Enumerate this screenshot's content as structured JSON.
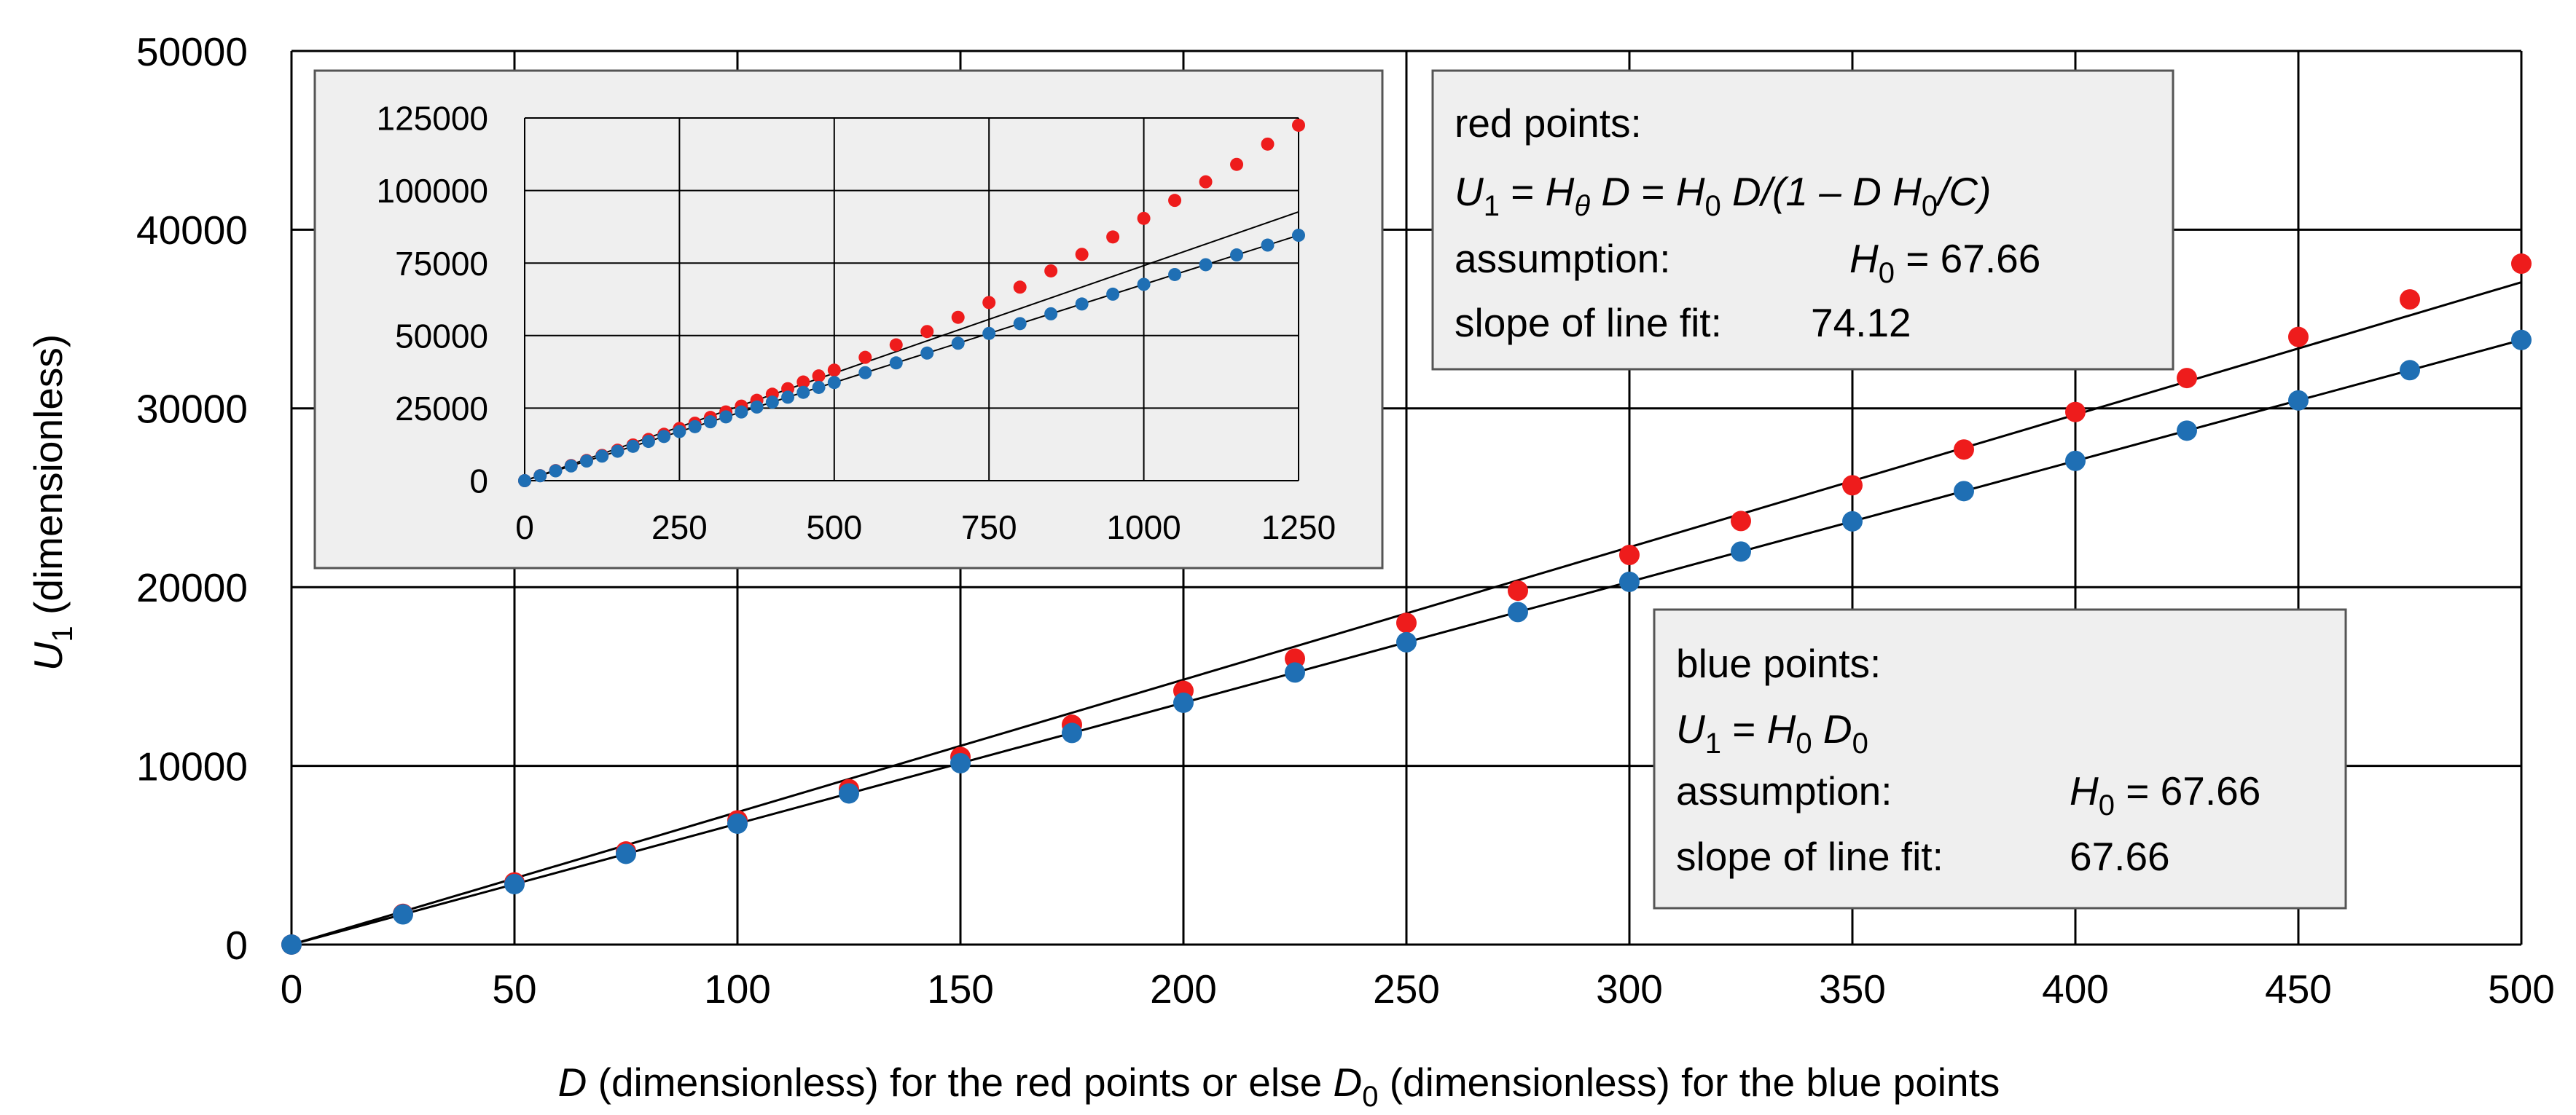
{
  "chart_data": [
    {
      "type": "scatter",
      "xlabel": {
        "var": "D",
        "text1": " (dimensionless) for the red points or else ",
        "var2": "D",
        "sub2": "0",
        "text2": " (dimensionless) for the blue points"
      },
      "ylabel": {
        "var": "U",
        "sub": "1",
        "text": " (dimensionless)"
      },
      "xlim": [
        0,
        500
      ],
      "ylim": [
        0,
        50000
      ],
      "xticks": [
        0,
        50,
        100,
        150,
        200,
        250,
        300,
        350,
        400,
        450,
        500
      ],
      "yticks": [
        0,
        10000,
        20000,
        30000,
        40000,
        50000
      ],
      "grid": true,
      "series": [
        {
          "color": "#ee1c1c",
          "x": [
            0,
            25,
            50,
            75,
            100,
            125,
            150,
            175,
            200,
            225,
            250,
            275,
            300,
            325,
            350,
            375,
            400,
            425,
            450,
            475,
            500
          ],
          "y": [
            0,
            1720,
            3480,
            5210,
            6950,
            8700,
            10500,
            12300,
            14200,
            16000,
            18000,
            19800,
            21800,
            23700,
            25700,
            27700,
            29800,
            31700,
            34000,
            36100,
            38100
          ]
        },
        {
          "color": "#1f6fb4",
          "x": [
            0,
            25,
            50,
            75,
            100,
            125,
            150,
            175,
            200,
            225,
            250,
            275,
            300,
            325,
            350,
            375,
            400,
            425,
            450,
            475,
            500
          ],
          "y": [
            0,
            1690,
            3383,
            5075,
            6766,
            8458,
            10149,
            11841,
            13532,
            15224,
            16915,
            18607,
            20298,
            21990,
            23681,
            25373,
            27064,
            28756,
            30447,
            32139,
            33830
          ]
        }
      ],
      "fit_lines": [
        {
          "slope": 74.12,
          "color": "#000000"
        },
        {
          "slope": 67.66,
          "color": "#000000"
        }
      ],
      "annotations": {
        "red_box": {
          "title": "red points:",
          "eq": {
            "U": "U",
            "U_sub": "1",
            "eq1": " = ",
            "H": "H",
            "H_sub": "θ",
            "D": " D",
            "eq2": " = ",
            "H2": "H",
            "H2_sub": "0",
            "rest": " D/(1 – D H",
            "rest_sub": "0",
            "rest_end": "/C)"
          },
          "assumption_label": "assumption:",
          "assumption_var": "H",
          "assumption_sub": "0",
          "assumption_value": " = 67.66",
          "slope_label": "slope of line fit:",
          "slope_value": "74.12",
          "title_color": "#ee1c1c"
        },
        "blue_box": {
          "title": "blue points:",
          "eq": {
            "U": "U",
            "U_sub": "1",
            "eq1": " = ",
            "H": "H",
            "H_sub": "0",
            "D": " D",
            "D_sub": "0"
          },
          "assumption_label": "assumption:",
          "assumption_var": "H",
          "assumption_sub": "0",
          "assumption_value": " = 67.66",
          "slope_label": "slope of line fit:",
          "slope_value": "67.66",
          "title_color": "#1f6fb4"
        }
      }
    },
    {
      "type": "scatter",
      "inset": true,
      "xlim": [
        0,
        1250
      ],
      "ylim": [
        0,
        125000
      ],
      "xticks": [
        0,
        250,
        500,
        750,
        1000,
        1250
      ],
      "yticks": [
        0,
        25000,
        50000,
        75000,
        100000,
        125000
      ],
      "grid": true,
      "series": [
        {
          "color": "#ee1c1c",
          "x": [
            0,
            25,
            50,
            75,
            100,
            125,
            150,
            175,
            200,
            225,
            250,
            275,
            300,
            325,
            350,
            375,
            400,
            425,
            450,
            475,
            500,
            550,
            600,
            650,
            700,
            750,
            800,
            850,
            900,
            950,
            1000,
            1050,
            1100,
            1150,
            1200,
            1250
          ],
          "y": [
            0,
            1720,
            3480,
            5210,
            6950,
            8700,
            10500,
            12300,
            14200,
            16000,
            18000,
            19800,
            21800,
            23700,
            25700,
            27700,
            29800,
            31700,
            34000,
            36100,
            38100,
            42500,
            46800,
            51400,
            56300,
            61400,
            66700,
            72300,
            78000,
            84000,
            90400,
            96600,
            103000,
            109000,
            116000,
            122500
          ]
        },
        {
          "color": "#1f6fb4",
          "x": [
            0,
            25,
            50,
            75,
            100,
            125,
            150,
            175,
            200,
            225,
            250,
            275,
            300,
            325,
            350,
            375,
            400,
            425,
            450,
            475,
            500,
            550,
            600,
            650,
            700,
            750,
            800,
            850,
            900,
            950,
            1000,
            1050,
            1100,
            1150,
            1200,
            1250
          ],
          "y": [
            0,
            1690,
            3383,
            5075,
            6766,
            8458,
            10149,
            11841,
            13532,
            15224,
            16915,
            18607,
            20298,
            21990,
            23681,
            25373,
            27064,
            28756,
            30447,
            32139,
            33830,
            37213,
            40596,
            43979,
            47362,
            50745,
            54128,
            57511,
            60894,
            64277,
            67660,
            71043,
            74426,
            77809,
            81192,
            84575
          ]
        }
      ],
      "fit_lines": [
        {
          "slope": 74.12,
          "color": "#000000"
        },
        {
          "slope": 67.66,
          "color": "#000000"
        }
      ]
    }
  ]
}
